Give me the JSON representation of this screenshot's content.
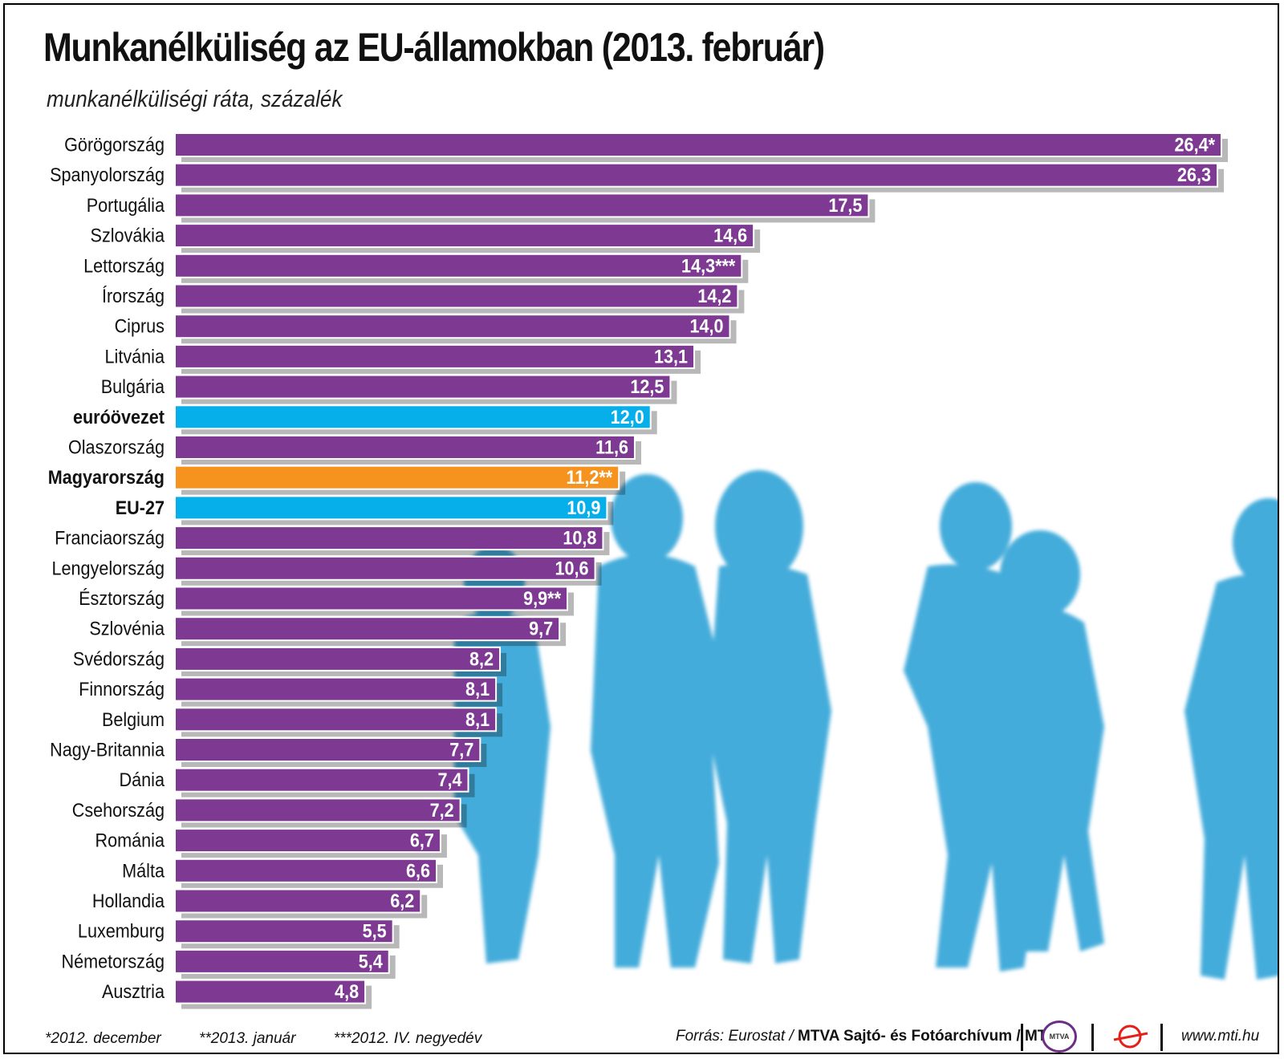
{
  "header": {
    "title": "Munkanélküliség az EU-államokban (2013. február)",
    "subtitle": "munkanélküliségi ráta, százalék"
  },
  "colors": {
    "bar_default": "#7e3a93",
    "bar_eu": "#06aeea",
    "bar_hungary": "#f6921e",
    "silhouettes": "#3ba8d9",
    "logo_mtva": "#6b2d86",
    "logo_mti": "#e32119"
  },
  "chart_data": {
    "type": "bar",
    "orientation": "horizontal",
    "grid": false,
    "categories": [
      "Görögország",
      "Spanyolország",
      "Portugália",
      "Szlovákia",
      "Lettország",
      "Írország",
      "Ciprus",
      "Litvánia",
      "Bulgária",
      "euróövezet",
      "Olaszország",
      "Magyarország",
      "EU-27",
      "Franciaország",
      "Lengyelország",
      "Észtország",
      "Szlovénia",
      "Svédország",
      "Finnország",
      "Belgium",
      "Nagy-Britannia",
      "Dánia",
      "Csehország",
      "Románia",
      "Málta",
      "Hollandia",
      "Luxemburg",
      "Németország",
      "Ausztria"
    ],
    "values": [
      26.4,
      26.3,
      17.5,
      14.6,
      14.3,
      14.2,
      14.0,
      13.1,
      12.5,
      12.0,
      11.6,
      11.2,
      10.9,
      10.8,
      10.6,
      9.9,
      9.7,
      8.2,
      8.1,
      8.1,
      7.7,
      7.4,
      7.2,
      6.7,
      6.6,
      6.2,
      5.5,
      5.4,
      4.8
    ],
    "value_labels": [
      "26,4*",
      "26,3",
      "17,5",
      "14,6",
      "14,3***",
      "14,2",
      "14,0",
      "13,1",
      "12,5",
      "12,0",
      "11,6",
      "11,2**",
      "10,9",
      "10,8",
      "10,6",
      "9,9**",
      "9,7",
      "8,2",
      "8,1",
      "8,1",
      "7,7",
      "7,4",
      "7,2",
      "6,7",
      "6,6",
      "6,2",
      "5,5",
      "5,4",
      "4,8"
    ],
    "highlight": {
      "euróövezet": "eu",
      "EU-27": "eu",
      "Magyarország": "hungary"
    },
    "bold_categories": [
      "euróövezet",
      "Magyarország",
      "EU-27"
    ]
  },
  "footnotes": [
    "*2012. december",
    "**2013. január",
    "***2012. IV. negyedév"
  ],
  "footer": {
    "source_prefix": "Forrás: Eurostat / ",
    "source_bold": "MTVA Sajtó- és Fotóarchívum / MTI",
    "logo_mtva_text": "MTVA",
    "url": "www.mti.hu"
  }
}
